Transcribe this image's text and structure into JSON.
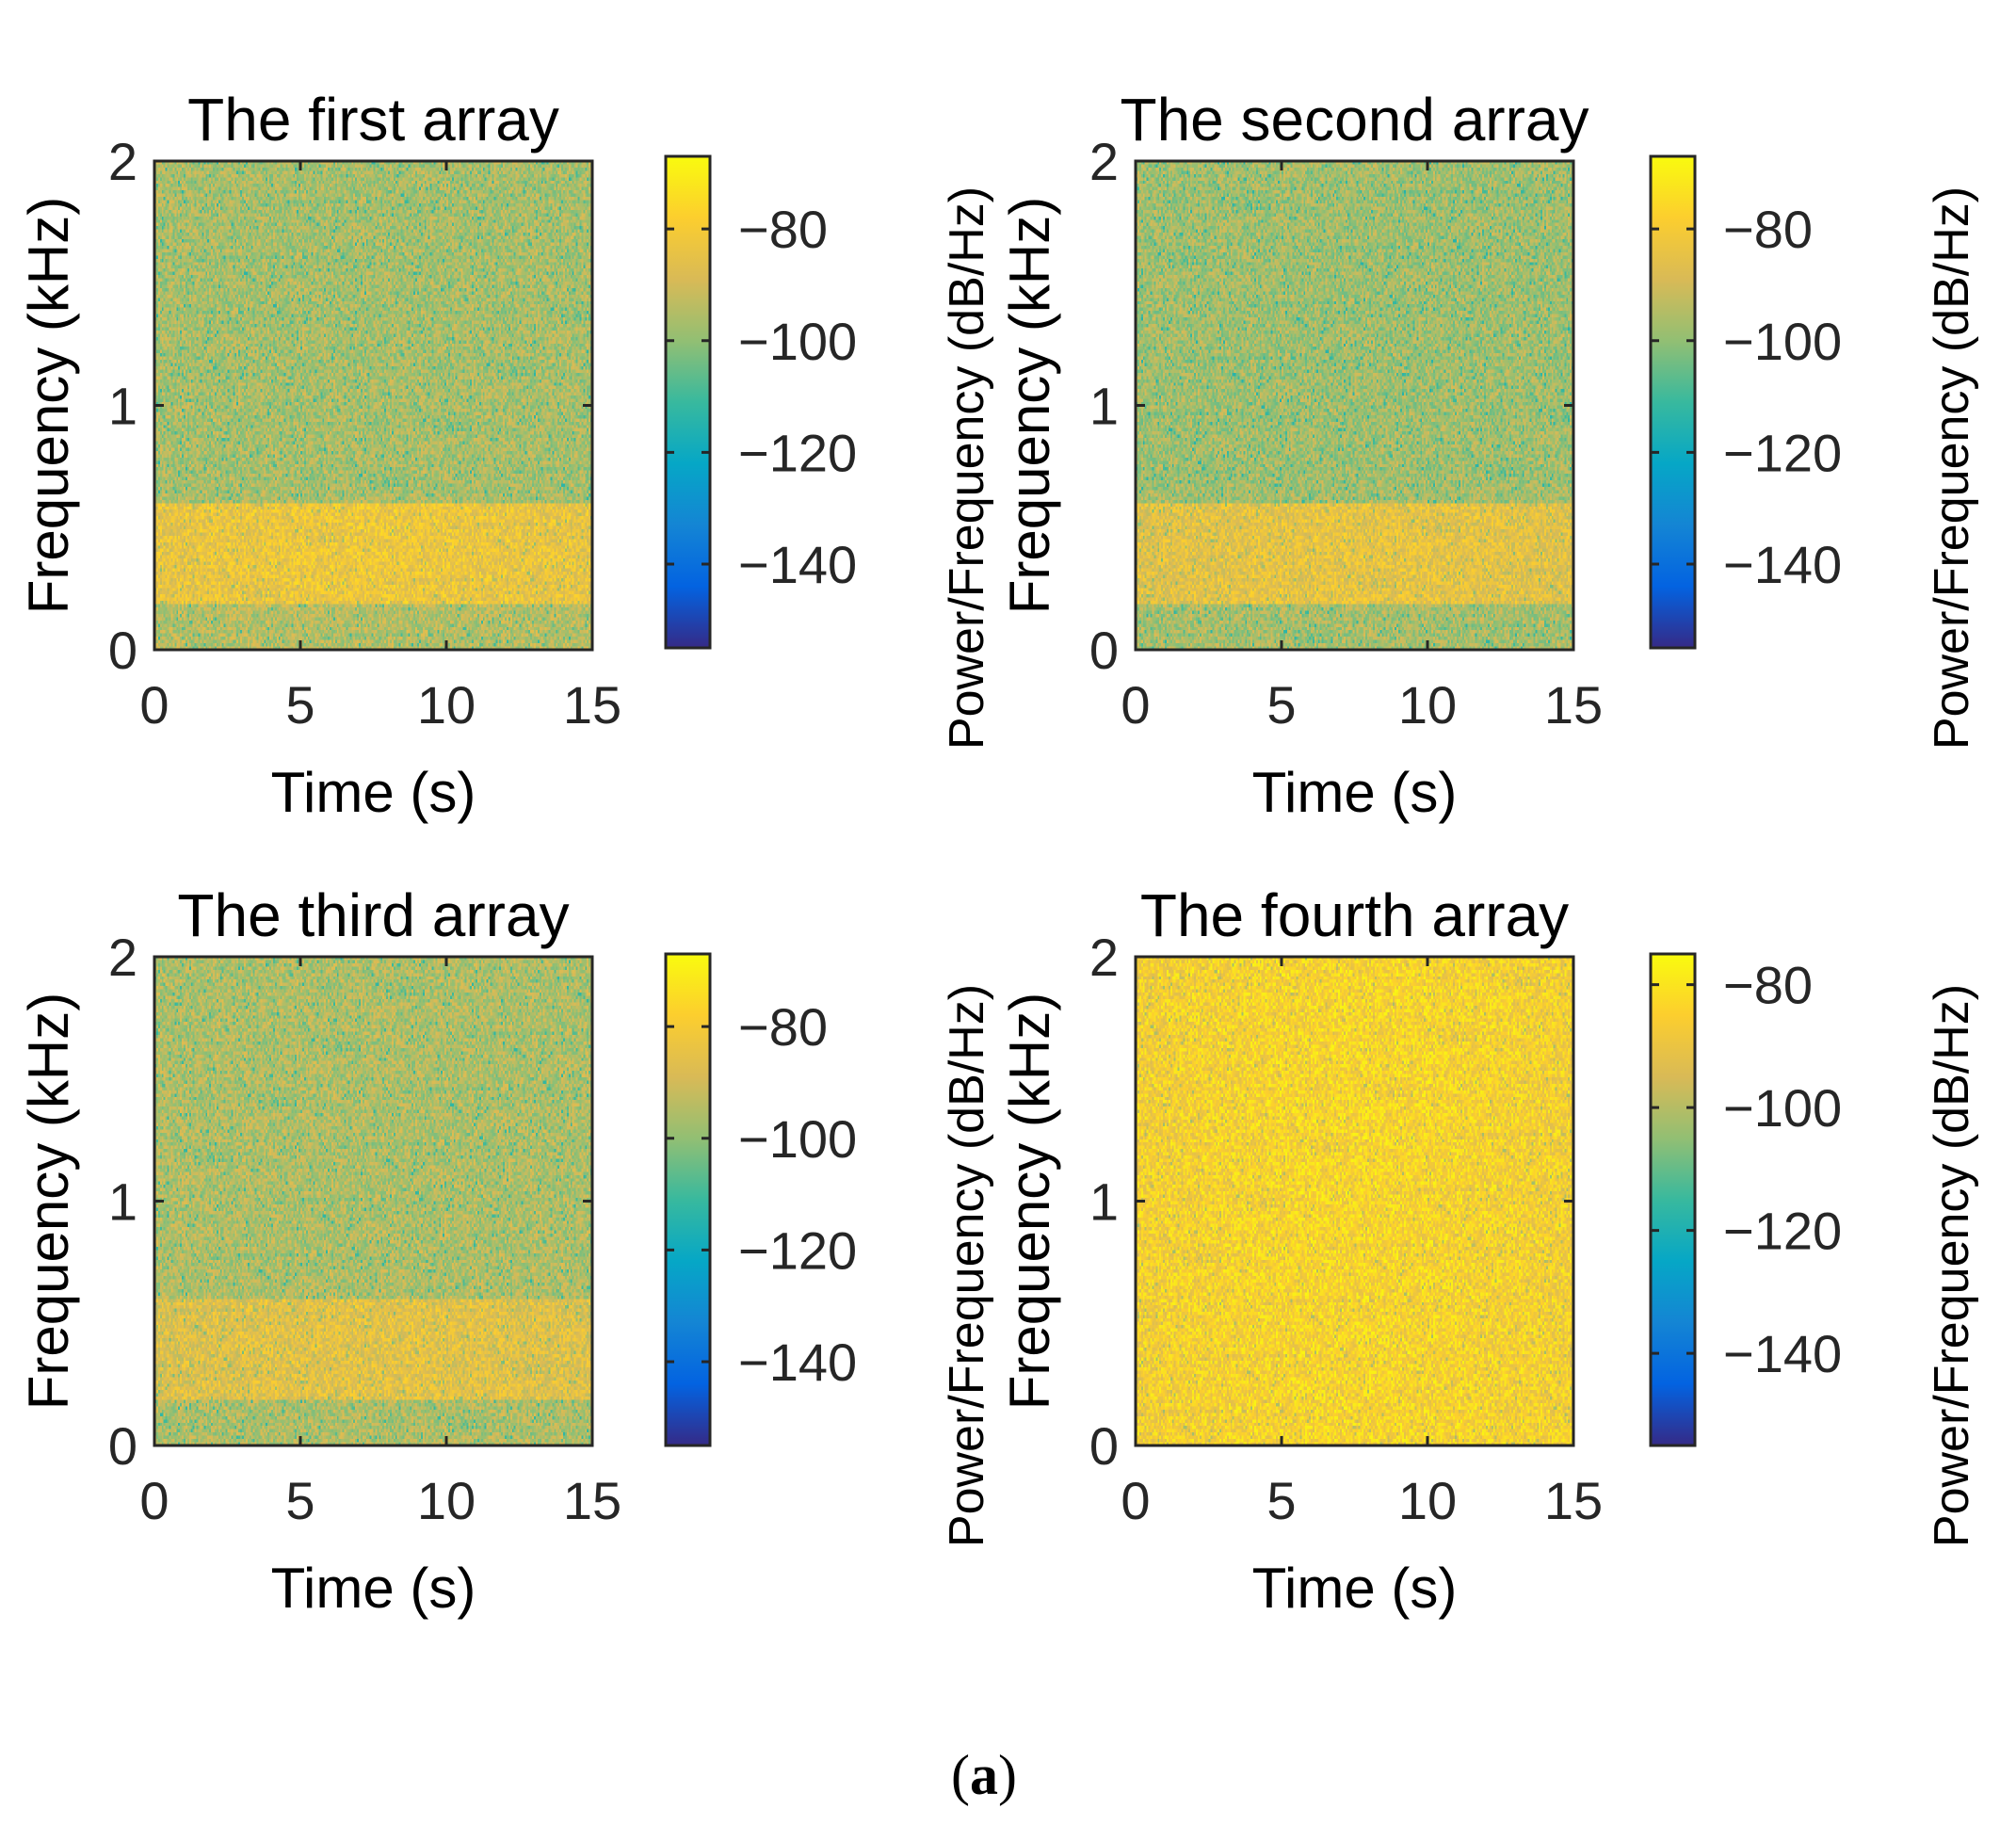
{
  "figure": {
    "caption": "(a)",
    "caption_open": "(",
    "caption_letter": "a",
    "caption_close": ")"
  },
  "colors": {
    "background": "#ffffff",
    "axes": "#262626",
    "parula": [
      "#352a87",
      "#0363e1",
      "#1485d4",
      "#06a7c6",
      "#38b99e",
      "#92bf73",
      "#d9ba56",
      "#fcce2e",
      "#f9fb0e"
    ]
  },
  "chart_data": [
    {
      "type": "heatmap",
      "title": "The first array",
      "xlabel": "Time (s)",
      "ylabel": "Frequency (kHz)",
      "colorbar_label": "Power/Frequency (dB/Hz)",
      "xlim": [
        0,
        15
      ],
      "ylim": [
        0,
        2
      ],
      "xticks": [
        0,
        5,
        10,
        15
      ],
      "xtick_labels": [
        "0",
        "5",
        "10",
        "15"
      ],
      "yticks": [
        0,
        1,
        2
      ],
      "ytick_labels": [
        "0",
        "1",
        "2"
      ],
      "clim": [
        -155,
        -67
      ],
      "cticks": [
        -80,
        -100,
        -120,
        -140
      ],
      "ctick_labels": [
        "−80",
        "−100",
        "−120",
        "−140"
      ],
      "bands": [
        {
          "f_range": [
            0,
            0.18
          ],
          "mean_db": -94
        },
        {
          "f_range": [
            0.18,
            0.6
          ],
          "mean_db": -84
        },
        {
          "f_range": [
            0.6,
            2.0
          ],
          "mean_db": -96
        }
      ]
    },
    {
      "type": "heatmap",
      "title": "The second array",
      "xlabel": "Time (s)",
      "ylabel": "Frequency (kHz)",
      "colorbar_label": "Power/Frequency (dB/Hz)",
      "xlim": [
        0,
        15
      ],
      "ylim": [
        0,
        2
      ],
      "xticks": [
        0,
        5,
        10,
        15
      ],
      "xtick_labels": [
        "0",
        "5",
        "10",
        "15"
      ],
      "yticks": [
        0,
        1,
        2
      ],
      "ytick_labels": [
        "0",
        "1",
        "2"
      ],
      "clim": [
        -155,
        -67
      ],
      "cticks": [
        -80,
        -100,
        -120,
        -140
      ],
      "ctick_labels": [
        "−80",
        "−100",
        "−120",
        "−140"
      ],
      "bands": [
        {
          "f_range": [
            0,
            0.18
          ],
          "mean_db": -96
        },
        {
          "f_range": [
            0.18,
            0.6
          ],
          "mean_db": -86
        },
        {
          "f_range": [
            0.6,
            2.0
          ],
          "mean_db": -97
        }
      ]
    },
    {
      "type": "heatmap",
      "title": "The third array",
      "xlabel": "Time (s)",
      "ylabel": "Frequency (kHz)",
      "colorbar_label": "Power/Frequency (dB/Hz)",
      "xlim": [
        0,
        15
      ],
      "ylim": [
        0,
        2
      ],
      "xticks": [
        0,
        5,
        10,
        15
      ],
      "xtick_labels": [
        "0",
        "5",
        "10",
        "15"
      ],
      "yticks": [
        0,
        1,
        2
      ],
      "ytick_labels": [
        "0",
        "1",
        "2"
      ],
      "clim": [
        -155,
        -67
      ],
      "cticks": [
        -80,
        -100,
        -120,
        -140
      ],
      "ctick_labels": [
        "−80",
        "−100",
        "−120",
        "−140"
      ],
      "bands": [
        {
          "f_range": [
            0,
            0.18
          ],
          "mean_db": -95
        },
        {
          "f_range": [
            0.18,
            0.6
          ],
          "mean_db": -87
        },
        {
          "f_range": [
            0.6,
            2.0
          ],
          "mean_db": -95
        }
      ]
    },
    {
      "type": "heatmap",
      "title": "The fourth array",
      "xlabel": "Time (s)",
      "ylabel": "Frequency (kHz)",
      "colorbar_label": "Power/Frequency (dB/Hz)",
      "xlim": [
        0,
        15
      ],
      "ylim": [
        0,
        2
      ],
      "xticks": [
        0,
        5,
        10,
        15
      ],
      "xtick_labels": [
        "0",
        "5",
        "10",
        "15"
      ],
      "yticks": [
        0,
        1,
        2
      ],
      "ytick_labels": [
        "0",
        "1",
        "2"
      ],
      "clim": [
        -155,
        -75
      ],
      "cticks": [
        -80,
        -100,
        -120,
        -140
      ],
      "ctick_labels": [
        "−80",
        "−100",
        "−120",
        "−140"
      ],
      "bands": [
        {
          "f_range": [
            0,
            2.0
          ],
          "mean_db": -86
        }
      ]
    }
  ]
}
